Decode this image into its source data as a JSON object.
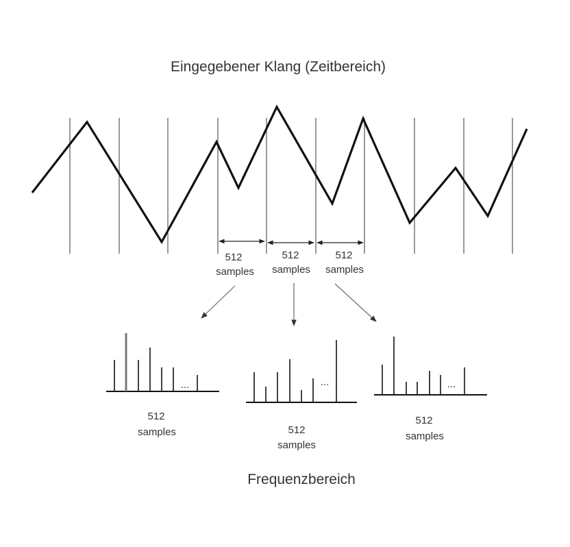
{
  "title_top": "Eingegebener Klang (Zeitbereich)",
  "title_bottom": "Frequenzbereich",
  "frame_labels": [
    {
      "number": "512",
      "unit": "samples"
    },
    {
      "number": "512",
      "unit": "samples"
    },
    {
      "number": "512",
      "unit": "samples"
    }
  ],
  "spectrum_labels": [
    {
      "number": "512",
      "unit": "samples"
    },
    {
      "number": "512",
      "unit": "samples"
    },
    {
      "number": "512",
      "unit": "samples"
    }
  ],
  "ellipsis": "...",
  "colors": {
    "line": "#111111",
    "grid": "#555555",
    "arrow": "#666666"
  }
}
